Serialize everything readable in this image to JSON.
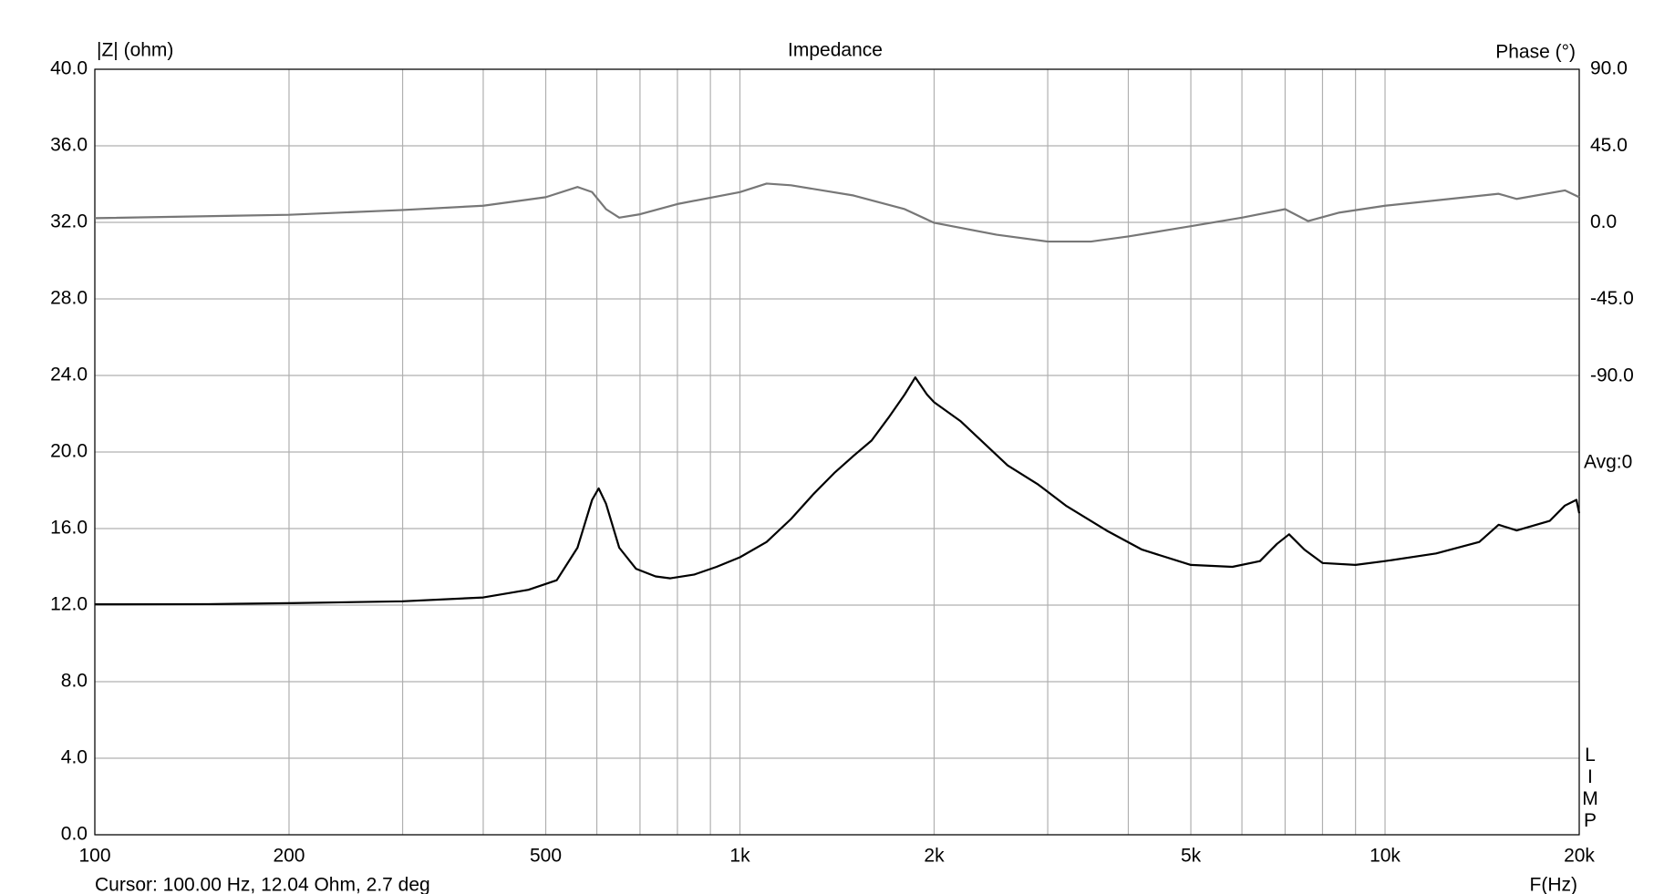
{
  "chart_data": {
    "type": "line",
    "title": "Impedance",
    "y_label": "|Z| (ohm)",
    "y2_label": "Phase (°)",
    "x_label": "F(Hz)",
    "cursor_text": "Cursor: 100.00 Hz, 12.04 Ohm, 2.7 deg",
    "annotation": "Avg:0",
    "side_label": "LIMP",
    "x_log": true,
    "grid": true,
    "xlim": [
      100,
      20000
    ],
    "xticks": [
      100,
      200,
      500,
      {
        "value": 1000,
        "label": "1k"
      },
      {
        "value": 2000,
        "label": "2k"
      },
      {
        "value": 5000,
        "label": "5k"
      },
      {
        "value": 10000,
        "label": "10k"
      },
      {
        "value": 20000,
        "label": "20k"
      }
    ],
    "xminor": [
      300,
      400,
      600,
      700,
      800,
      900,
      3000,
      4000,
      6000,
      7000,
      8000,
      9000
    ],
    "ylim": [
      0,
      40
    ],
    "yticks": [
      {
        "value": 0,
        "label": "0.0"
      },
      {
        "value": 4,
        "label": "4.0"
      },
      {
        "value": 8,
        "label": "8.0"
      },
      {
        "value": 12,
        "label": "12.0"
      },
      {
        "value": 16,
        "label": "16.0"
      },
      {
        "value": 20,
        "label": "20.0"
      },
      {
        "value": 24,
        "label": "24.0"
      },
      {
        "value": 28,
        "label": "28.0"
      },
      {
        "value": 32,
        "label": "32.0"
      },
      {
        "value": 36,
        "label": "36.0"
      },
      {
        "value": 40,
        "label": "40.0"
      }
    ],
    "y2lim": [
      -358.75,
      90
    ],
    "y2ticks": [
      {
        "value": -90,
        "label": "-90.0"
      },
      {
        "value": -45,
        "label": "-45.0"
      },
      {
        "value": 0,
        "label": "0.0"
      },
      {
        "value": 45,
        "label": "45.0"
      },
      {
        "value": 90,
        "label": "90.0"
      }
    ],
    "series": [
      {
        "name": "Impedance",
        "color": "#000000",
        "x": [
          100,
          150,
          200,
          300,
          400,
          470,
          520,
          560,
          590,
          604,
          620,
          650,
          690,
          740,
          780,
          850,
          920,
          1000,
          1100,
          1200,
          1300,
          1400,
          1500,
          1600,
          1700,
          1800,
          1870,
          1950,
          2000,
          2200,
          2400,
          2600,
          2900,
          3200,
          3700,
          4200,
          5000,
          5800,
          6400,
          6800,
          7100,
          7500,
          8000,
          9000,
          10000,
          12000,
          14000,
          15000,
          16000,
          18000,
          19000,
          19800,
          20000
        ],
        "values": [
          12.04,
          12.05,
          12.1,
          12.2,
          12.4,
          12.8,
          13.3,
          15.0,
          17.5,
          18.1,
          17.3,
          15.0,
          13.9,
          13.5,
          13.4,
          13.6,
          14.0,
          14.5,
          15.3,
          16.5,
          17.8,
          18.9,
          19.8,
          20.6,
          21.8,
          23.0,
          23.9,
          23.0,
          22.6,
          21.6,
          20.4,
          19.3,
          18.3,
          17.2,
          15.9,
          14.9,
          14.1,
          14.0,
          14.3,
          15.2,
          15.7,
          14.9,
          14.2,
          14.1,
          14.3,
          14.7,
          15.3,
          16.2,
          15.9,
          16.4,
          17.2,
          17.5,
          16.8
        ]
      },
      {
        "name": "Phase",
        "color": "#777777",
        "axis": "y2",
        "x": [
          100,
          200,
          300,
          400,
          500,
          560,
          590,
          620,
          650,
          700,
          800,
          1000,
          1100,
          1200,
          1500,
          1800,
          2000,
          2500,
          3000,
          3500,
          4000,
          5000,
          6000,
          7000,
          7600,
          8500,
          10000,
          15000,
          16000,
          19000,
          20000
        ],
        "values": [
          2.7,
          4.7,
          7.5,
          10,
          15,
          21,
          18,
          8,
          3,
          5,
          11,
          18,
          23,
          22,
          16,
          8,
          0,
          -7,
          -11,
          -11,
          -8,
          -2,
          3,
          8,
          1,
          6,
          10,
          17,
          14,
          19,
          15
        ]
      }
    ]
  }
}
